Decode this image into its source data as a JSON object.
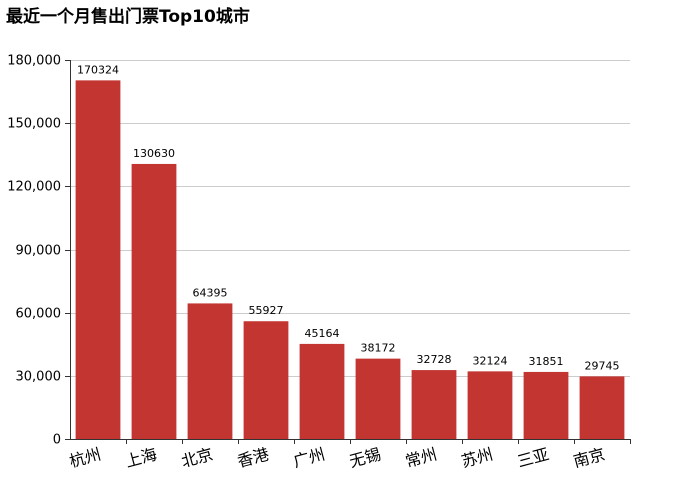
{
  "chart_data": {
    "type": "bar",
    "title": "最近一个月售出门票Top10城市",
    "xlabel": "",
    "ylabel": "",
    "categories": [
      "杭州",
      "上海",
      "北京",
      "香港",
      "广州",
      "无锡",
      "常州",
      "苏州",
      "三亚",
      "南京"
    ],
    "values": [
      170324,
      130630,
      64395,
      55927,
      45164,
      38172,
      32728,
      32124,
      31851,
      29745
    ],
    "ylim": [
      0,
      180000
    ],
    "yticks": [
      0,
      30000,
      60000,
      90000,
      120000,
      150000,
      180000
    ],
    "ytick_labels": [
      "0",
      "30,000",
      "60,000",
      "90,000",
      "120,000",
      "150,000",
      "180,000"
    ],
    "bar_color": "#c23531",
    "grid": true,
    "legend": "none",
    "data_labels": true
  }
}
